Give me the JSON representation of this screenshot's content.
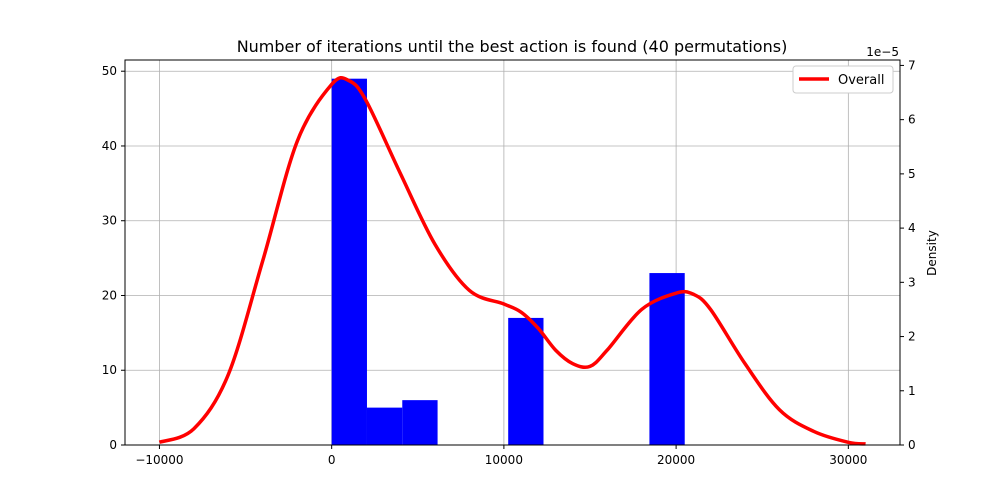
{
  "chart_data": {
    "type": "bar",
    "title": "Number of iterations until the best action is found (40 permutations)",
    "xlabel": "",
    "ylabel": "",
    "y2label": "Density",
    "y2_offset_label": "1e−5",
    "xlim": [
      -12000,
      33000
    ],
    "ylim": [
      0,
      51.5
    ],
    "y2lim": [
      0,
      7.1
    ],
    "xticks": [
      -10000,
      0,
      10000,
      20000,
      30000
    ],
    "yticks": [
      0,
      10,
      20,
      30,
      40,
      50
    ],
    "y2ticks": [
      0,
      1,
      2,
      3,
      4,
      5,
      6,
      7
    ],
    "grid": true,
    "legend_position": "top-right",
    "bar_color": "#0000ff",
    "bins": [
      {
        "x0": 0,
        "x1": 2050,
        "value": 49
      },
      {
        "x0": 2050,
        "x1": 4100,
        "value": 5
      },
      {
        "x0": 4100,
        "x1": 6150,
        "value": 6
      },
      {
        "x0": 6150,
        "x1": 8200,
        "value": 0
      },
      {
        "x0": 8200,
        "x1": 10250,
        "value": 0
      },
      {
        "x0": 10250,
        "x1": 12300,
        "value": 17
      },
      {
        "x0": 12300,
        "x1": 14350,
        "value": 0
      },
      {
        "x0": 14350,
        "x1": 16400,
        "value": 0
      },
      {
        "x0": 16400,
        "x1": 18450,
        "value": 0
      },
      {
        "x0": 18450,
        "x1": 20500,
        "value": 23
      }
    ],
    "series": [
      {
        "name": "Overall",
        "color": "#ff0000",
        "axis": "right",
        "x": [
          -10000,
          -8000,
          -6000,
          -4000,
          -2000,
          0,
          1000,
          2000,
          4000,
          6000,
          8000,
          10000,
          11000,
          12000,
          13000,
          14000,
          15000,
          16000,
          18000,
          20000,
          21000,
          22000,
          24000,
          26000,
          28000,
          30000,
          31000
        ],
        "y": [
          0.05,
          0.3,
          1.3,
          3.4,
          5.6,
          6.65,
          6.72,
          6.35,
          5.0,
          3.7,
          2.85,
          2.6,
          2.45,
          2.15,
          1.75,
          1.5,
          1.45,
          1.75,
          2.5,
          2.8,
          2.78,
          2.5,
          1.5,
          0.65,
          0.25,
          0.05,
          0.02
        ]
      }
    ]
  }
}
